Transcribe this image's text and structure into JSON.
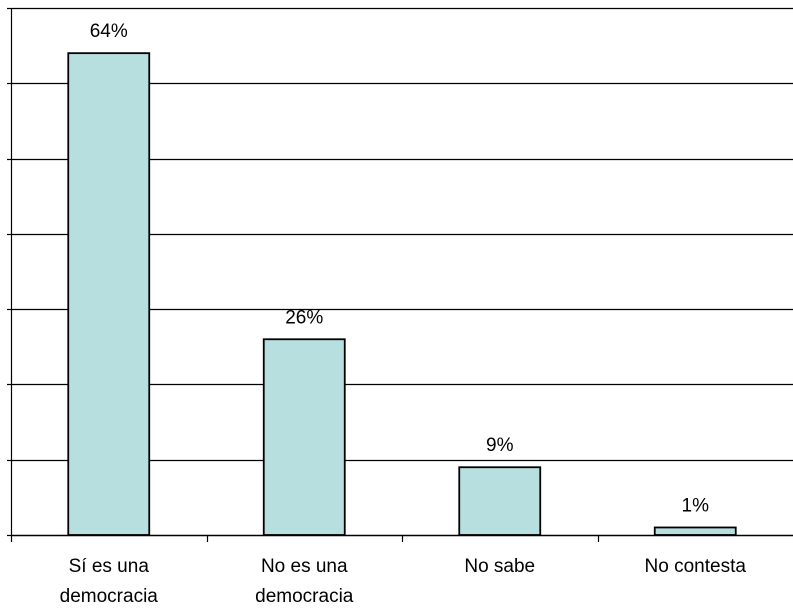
{
  "chart_data": {
    "type": "bar",
    "title": "",
    "xlabel": "",
    "ylabel": "",
    "categories": [
      [
        "Sí es una",
        "democracia"
      ],
      [
        "No es una",
        "democracia"
      ],
      [
        "No sabe"
      ],
      [
        "No contesta"
      ]
    ],
    "values": [
      64,
      26,
      9,
      1
    ],
    "data_labels": [
      "64%",
      "26%",
      "9%",
      "1%"
    ],
    "ylim": [
      0,
      70
    ],
    "y_major_step": 10,
    "grid": true,
    "legend": "none",
    "colors": {
      "bar_fill": "#b8dfe0",
      "bar_stroke": "#000000",
      "grid": "#000000",
      "background": "#ffffff"
    }
  }
}
